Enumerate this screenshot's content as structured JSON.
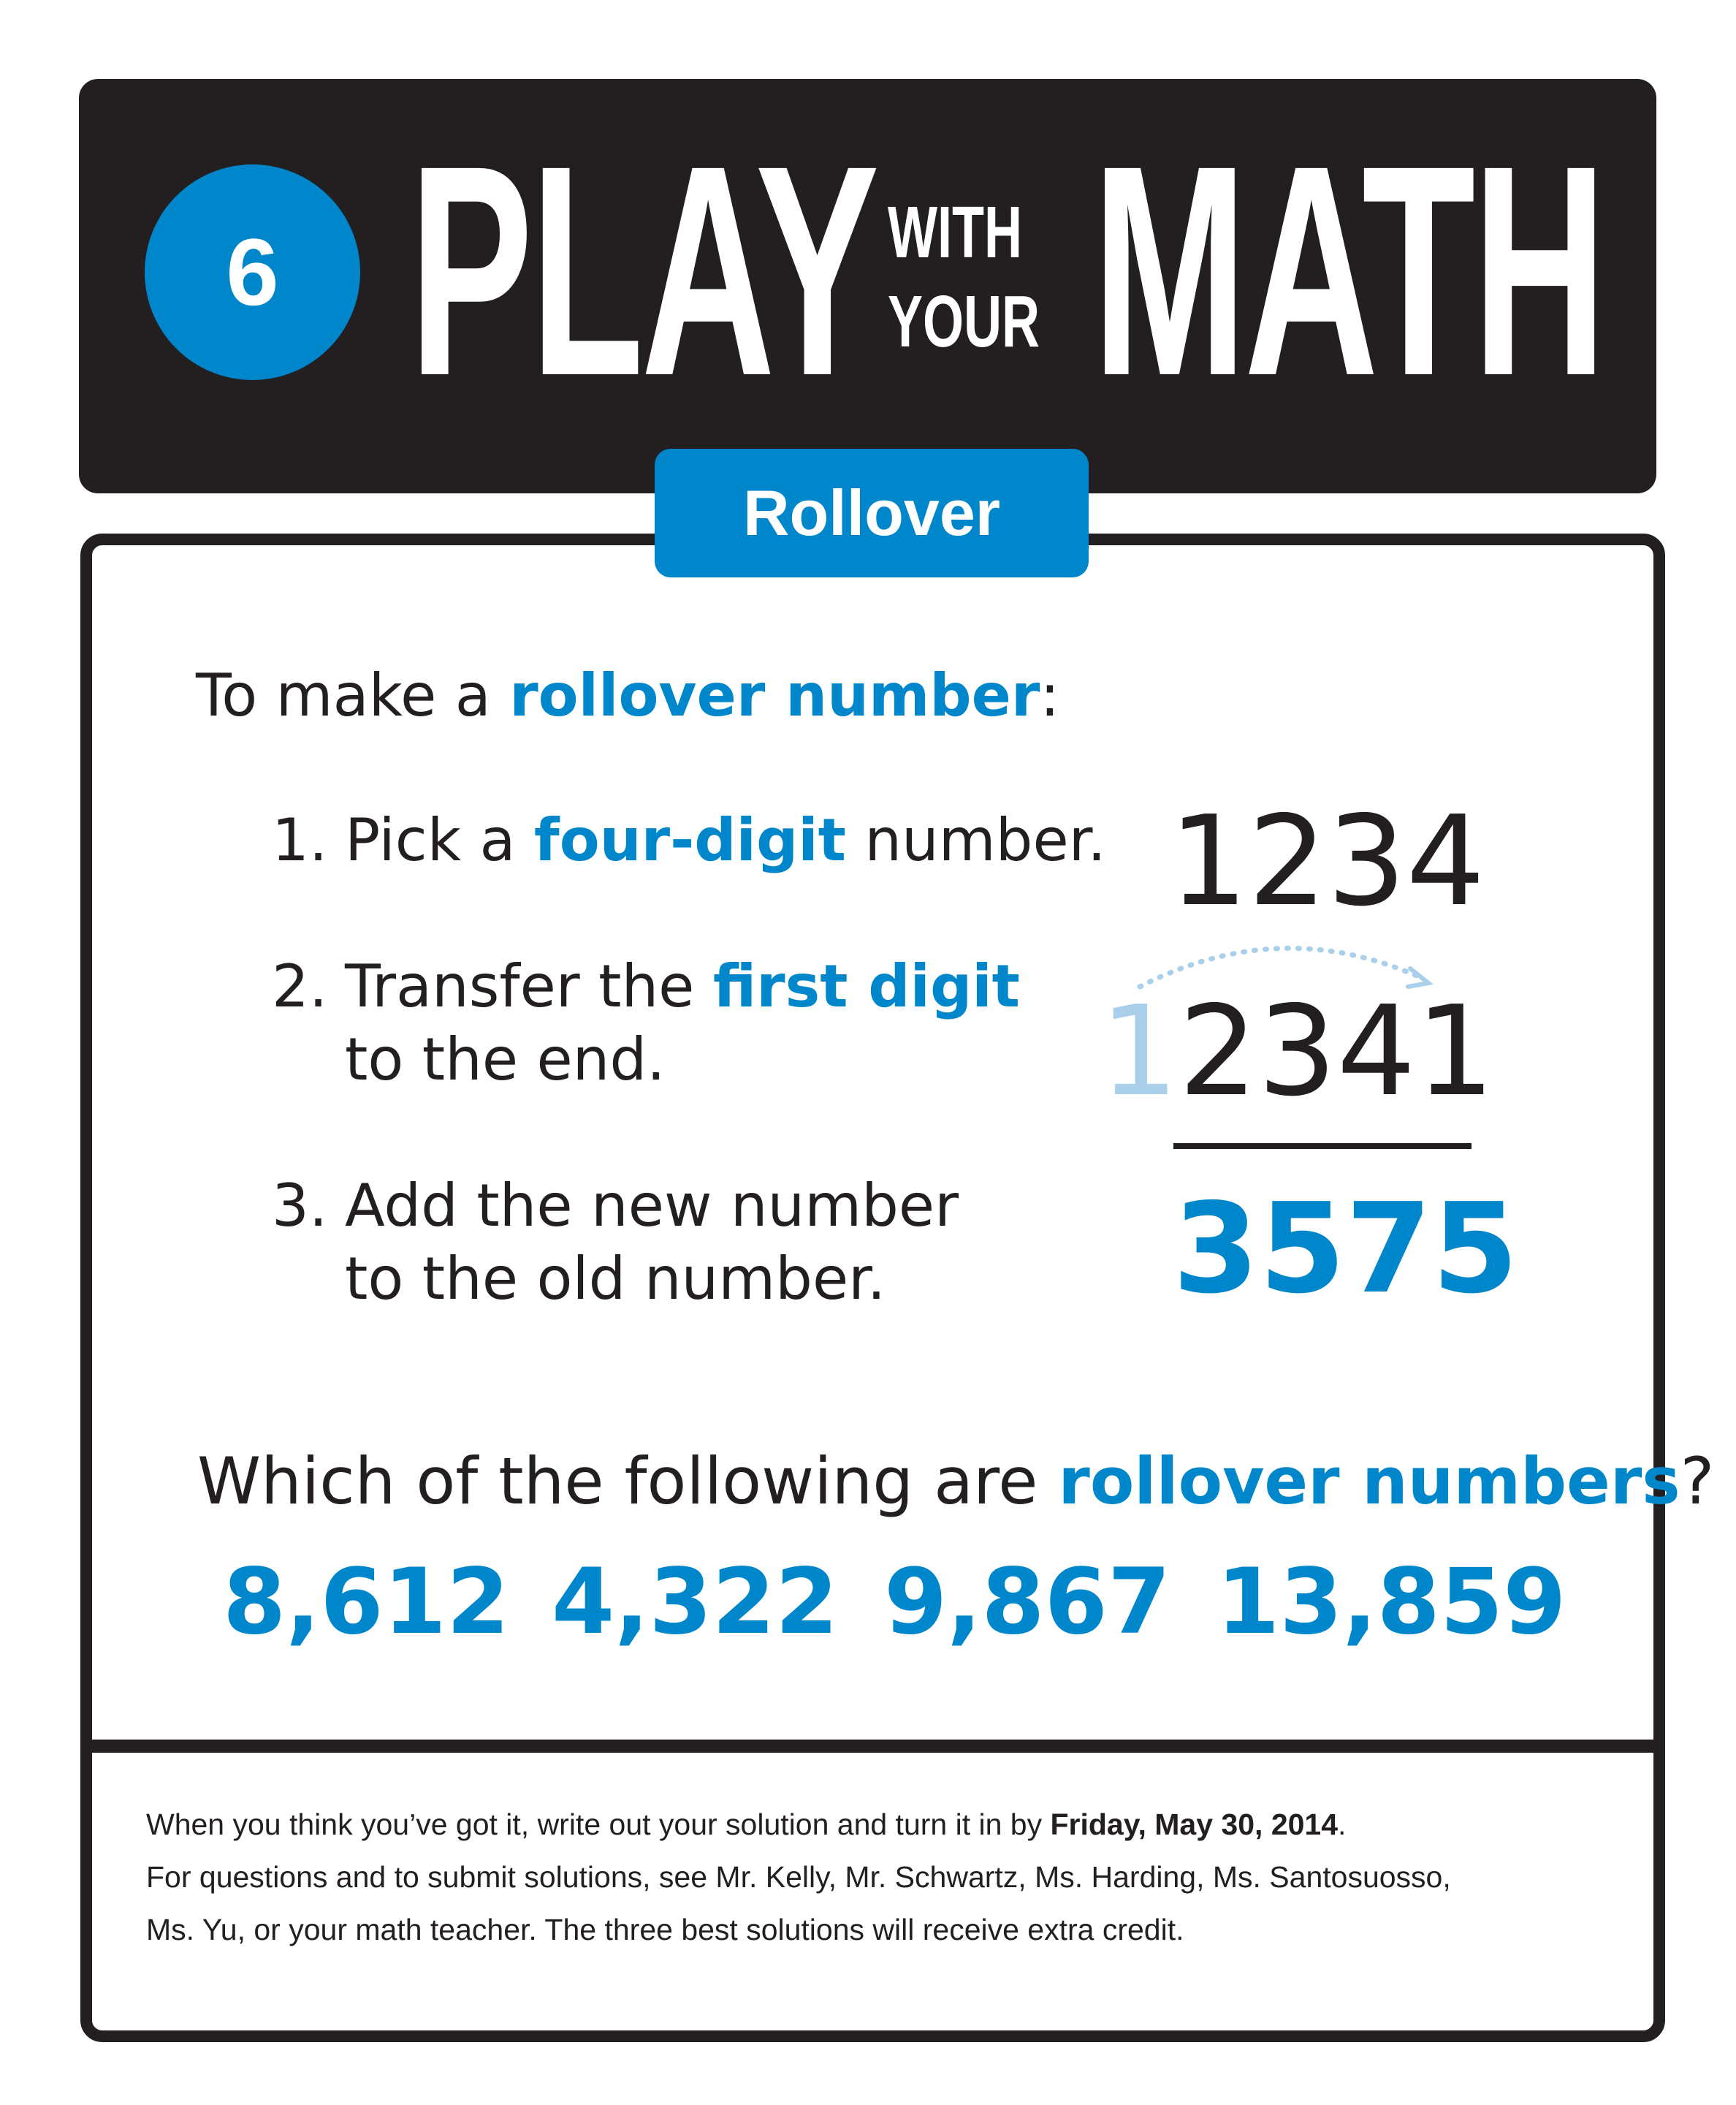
{
  "header": {
    "number": "6",
    "title_play": "PLAY",
    "title_with": "WITH",
    "title_your": "YOUR",
    "title_math": "MATH"
  },
  "tab": {
    "label": "Rollover"
  },
  "intro": {
    "prefix": "To make a ",
    "highlight": "rollover number",
    "suffix": ":"
  },
  "steps": [
    {
      "num": "1.",
      "prefix": "Pick a ",
      "highlight": "four-digit",
      "suffix": " number.",
      "line2": ""
    },
    {
      "num": "2.",
      "prefix": "Transfer the ",
      "highlight": "first digit",
      "suffix": "",
      "line2": "to the end."
    },
    {
      "num": "3.",
      "prefix": "Add the new number",
      "highlight": "",
      "suffix": "",
      "line2": "to the old number."
    }
  ],
  "example": {
    "original": "1234",
    "moved_digit": "1",
    "rotated": "2341",
    "sum": "3575"
  },
  "question": {
    "prefix": "Which of the following are ",
    "highlight": "rollover numbers",
    "suffix": "?"
  },
  "options": [
    "8,612",
    "4,322",
    "9,867",
    "13,859"
  ],
  "footer": {
    "line1_prefix": "When you think you’ve got it, write out your solution and turn it in by ",
    "line1_bold": "Friday, May 30, 2014",
    "line1_suffix": ".",
    "line2": "For questions and to submit solutions, see Mr. Kelly, Mr. Schwartz, Ms. Harding, Ms. Santosuosso,",
    "line3": "Ms. Yu, or your math teacher. The three best solutions will receive extra credit."
  },
  "colors": {
    "accent": "#0086cb",
    "dark": "#231f20",
    "light_blue": "#a9cfea"
  }
}
